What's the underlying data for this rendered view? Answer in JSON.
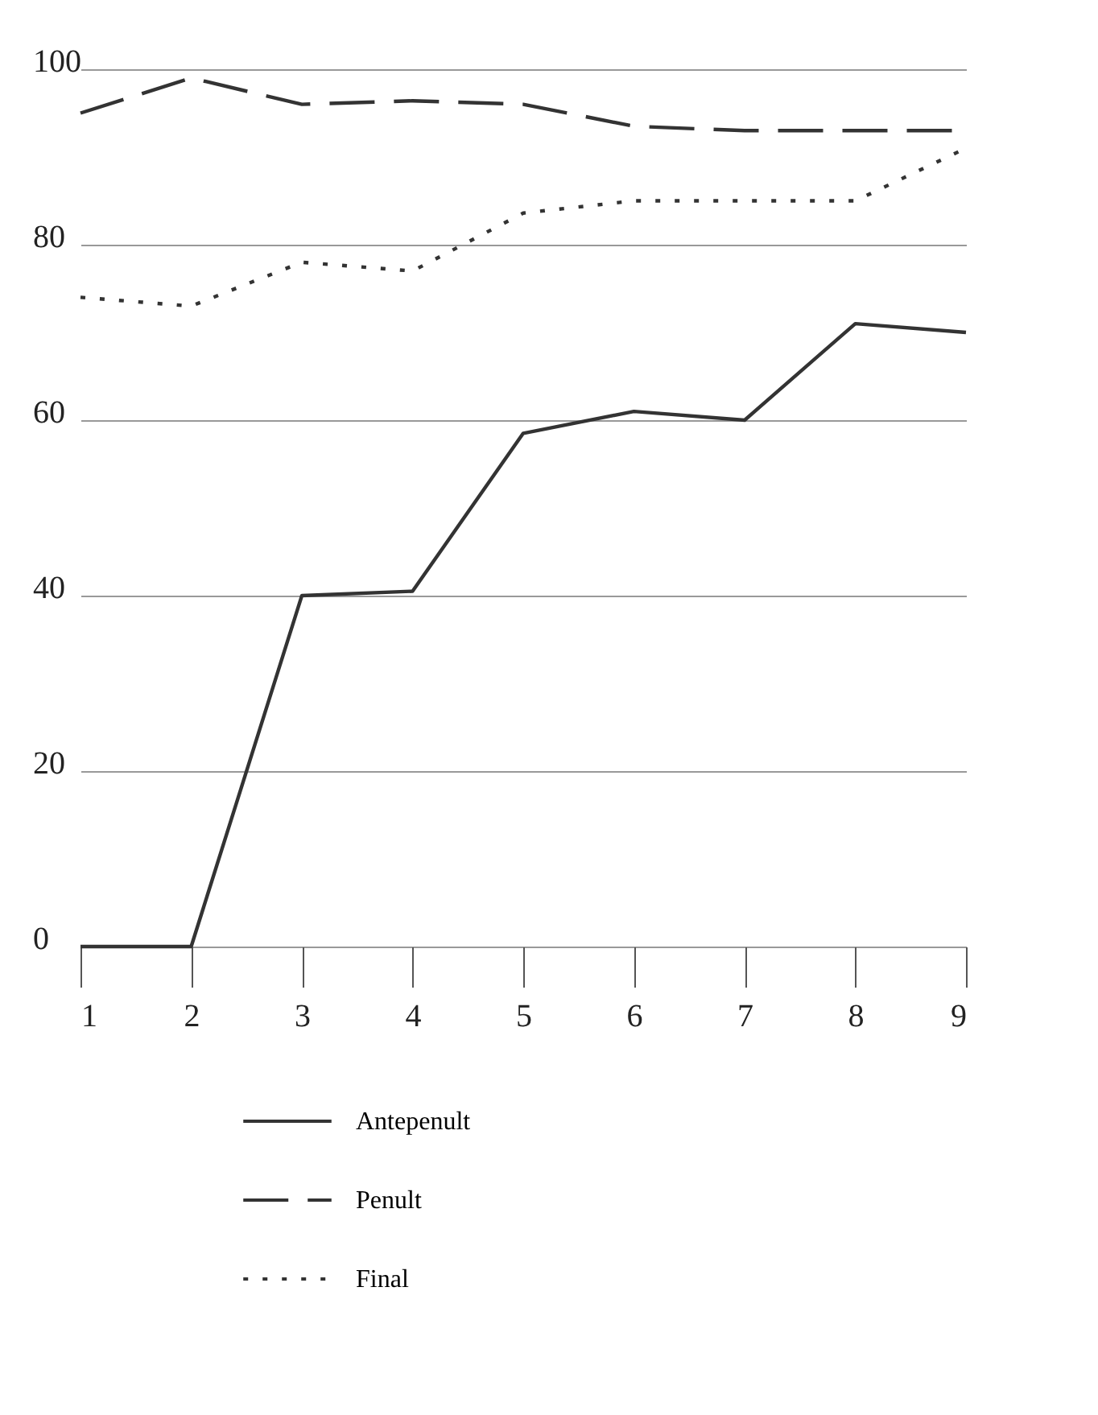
{
  "chart_data": {
    "type": "line",
    "x": [
      1,
      2,
      3,
      4,
      5,
      6,
      7,
      8,
      9
    ],
    "series": [
      {
        "name": "Antepenult",
        "color": "#333333",
        "line_style": "solid",
        "values": [
          0,
          0,
          40,
          40.5,
          58.5,
          61,
          60,
          71,
          70
        ]
      },
      {
        "name": "Penult",
        "color": "#333333",
        "line_style": "dashed",
        "values": [
          95,
          99,
          96,
          96.4,
          96,
          93.5,
          93,
          93,
          93
        ]
      },
      {
        "name": "Final",
        "color": "#333333",
        "line_style": "dotted",
        "values": [
          74,
          73,
          78,
          77,
          83.6,
          85,
          85,
          85,
          91
        ]
      }
    ],
    "xlim": [
      1,
      9
    ],
    "xticks": [
      1,
      2,
      3,
      4,
      5,
      6,
      7,
      8,
      9
    ],
    "ylim": [
      0,
      100
    ],
    "yticks": [
      0,
      20,
      40,
      60,
      80,
      100
    ],
    "grid": "y",
    "legend": "bottom",
    "marker": "none"
  }
}
